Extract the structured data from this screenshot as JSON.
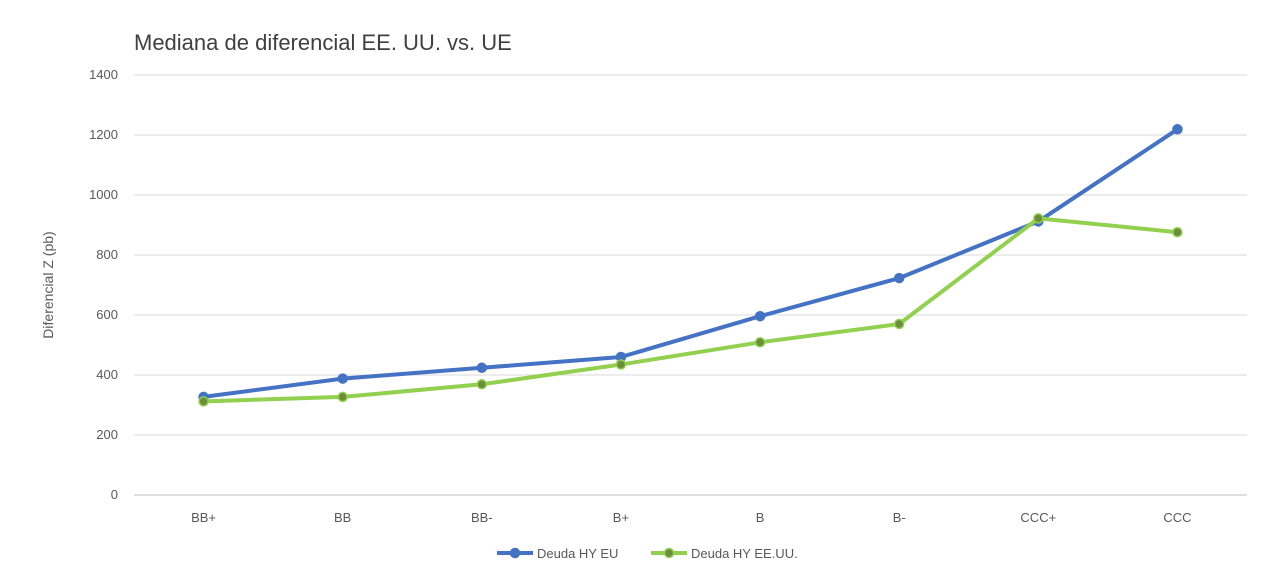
{
  "chart_data": {
    "type": "line",
    "title": "Mediana de diferencial EE. UU. vs. UE",
    "xlabel": "",
    "ylabel": "Diferencial Z (pb)",
    "categories": [
      "BB+",
      "BB",
      "BB-",
      "B+",
      "B",
      "B-",
      "CCC+",
      "CCC"
    ],
    "ylim": [
      0,
      1400
    ],
    "yticks": [
      0,
      200,
      400,
      600,
      800,
      1000,
      1200,
      1400
    ],
    "grid": true,
    "legend_position": "bottom",
    "series": [
      {
        "name": "Deuda HY EU",
        "color": "#4472C4",
        "marker_color": "#4472C4",
        "values": [
          327,
          388,
          424,
          460,
          596,
          723,
          912,
          1219
        ]
      },
      {
        "name": "Deuda HY EE.UU.",
        "color": "#92D050",
        "marker_color": "#6B8E3A",
        "values": [
          312,
          327,
          369,
          435,
          509,
          570,
          922,
          876
        ]
      }
    ]
  }
}
